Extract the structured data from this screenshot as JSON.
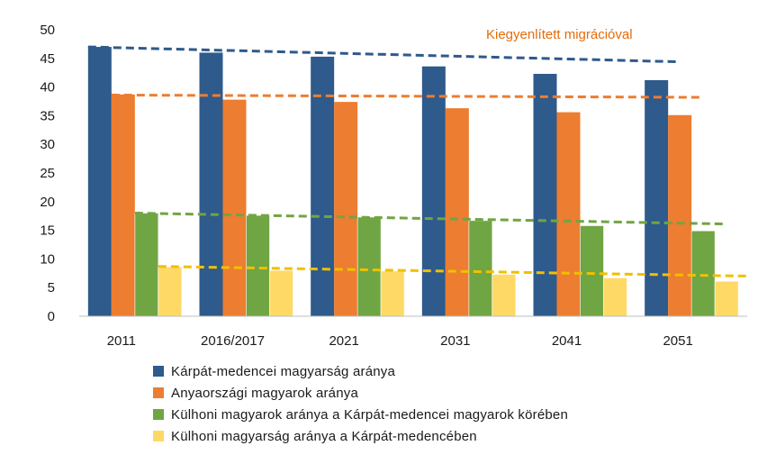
{
  "chart_data": {
    "type": "bar",
    "categories": [
      "2011",
      "2016/2017",
      "2021",
      "2031",
      "2041",
      "2051"
    ],
    "ylim": [
      0,
      50
    ],
    "yticks": [
      0,
      5,
      10,
      15,
      20,
      25,
      30,
      35,
      40,
      45,
      50
    ],
    "grid": false,
    "legend_position": "bottom",
    "series": [
      {
        "name": "Kárpát-medencei magyarság aránya",
        "color": "#2E5A8C",
        "values": [
          47.0,
          46.0,
          45.3,
          43.6,
          42.3,
          41.2
        ]
      },
      {
        "name": "Anyaországi magyarok aránya",
        "color": "#ED7D31",
        "values": [
          38.7,
          37.8,
          37.4,
          36.3,
          35.6,
          35.1
        ]
      },
      {
        "name": "Külhoni magyarok aránya a Kárpát-medencei magyarok körében",
        "color": "#70A543",
        "values": [
          18.0,
          17.6,
          17.3,
          16.7,
          15.8,
          14.9
        ]
      },
      {
        "name": "Külhoni magyarság aránya a Kárpát-medencében",
        "color": "#FFD966",
        "values": [
          8.6,
          8.0,
          7.9,
          7.3,
          6.7,
          6.1
        ]
      }
    ],
    "trendlines": [
      {
        "series": "Kárpát-medencei magyarság aránya",
        "color": "#2E5A8C",
        "start": 47.0,
        "end": 44.4
      },
      {
        "series": "Anyaországi magyarok aránya",
        "color": "#ED7D31",
        "start": 38.6,
        "end": 38.2
      },
      {
        "series": "Külhoni magyarok aránya a Kárpát-medencei magyarok körében",
        "color": "#70A543",
        "start": 18.0,
        "end": 16.1
      },
      {
        "series": "Külhoni magyarság aránya a Kárpát-medencében",
        "color": "#F0C000",
        "start": 8.7,
        "end": 7.0
      }
    ],
    "annotation": {
      "text": "Kiegyenlített migrációval",
      "color": "#E46C0A"
    }
  }
}
